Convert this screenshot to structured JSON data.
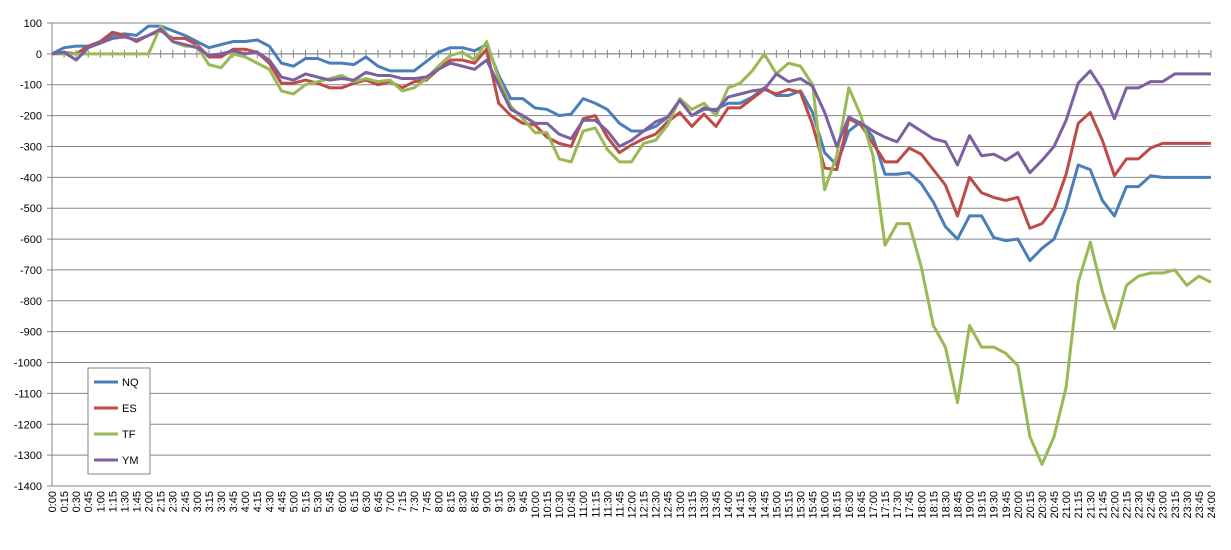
{
  "chart_data": {
    "type": "line",
    "categories": [
      "0:00",
      "0:15",
      "0:30",
      "0:45",
      "1:00",
      "1:15",
      "1:30",
      "1:45",
      "2:00",
      "2:15",
      "2:30",
      "2:45",
      "3:00",
      "3:15",
      "3:30",
      "3:45",
      "4:00",
      "4:15",
      "4:30",
      "4:45",
      "5:00",
      "5:15",
      "5:30",
      "5:45",
      "6:00",
      "6:15",
      "6:30",
      "6:45",
      "7:00",
      "7:15",
      "7:30",
      "7:45",
      "8:00",
      "8:15",
      "8:30",
      "8:45",
      "9:00",
      "9:15",
      "9:30",
      "9:45",
      "10:00",
      "10:15",
      "10:30",
      "10:45",
      "11:00",
      "11:15",
      "11:30",
      "11:45",
      "12:00",
      "12:15",
      "12:30",
      "12:45",
      "13:00",
      "13:15",
      "13:30",
      "13:45",
      "14:00",
      "14:15",
      "14:30",
      "14:45",
      "15:00",
      "15:15",
      "15:30",
      "15:45",
      "16:00",
      "16:15",
      "16:30",
      "16:45",
      "17:00",
      "17:15",
      "17:30",
      "17:45",
      "18:00",
      "18:15",
      "18:30",
      "18:45",
      "19:00",
      "19:15",
      "19:30",
      "19:45",
      "20:00",
      "20:15",
      "20:30",
      "20:45",
      "21:00",
      "21:15",
      "21:30",
      "21:45",
      "22:00",
      "22:15",
      "22:30",
      "22:45",
      "23:00",
      "23:15",
      "23:30",
      "23:45",
      "24:00"
    ],
    "series": [
      {
        "name": "NQ",
        "color": "#4a7ebb",
        "values": [
          0,
          20,
          25,
          25,
          35,
          60,
          65,
          60,
          90,
          90,
          75,
          60,
          40,
          20,
          30,
          40,
          40,
          45,
          25,
          -30,
          -40,
          -15,
          -15,
          -30,
          -30,
          -35,
          -10,
          -40,
          -55,
          -55,
          -55,
          -25,
          5,
          20,
          20,
          10,
          30,
          -70,
          -145,
          -145,
          -175,
          -180,
          -200,
          -195,
          -145,
          -160,
          -180,
          -225,
          -250,
          -250,
          -235,
          -205,
          -150,
          -200,
          -180,
          -180,
          -160,
          -160,
          -140,
          -110,
          -135,
          -135,
          -120,
          -190,
          -320,
          -360,
          -250,
          -220,
          -270,
          -390,
          -390,
          -385,
          -420,
          -480,
          -560,
          -600,
          -525,
          -525,
          -595,
          -605,
          -600,
          -670,
          -630,
          -600,
          -500,
          -360,
          -375,
          -475,
          -525,
          -430,
          -430,
          -395,
          -400,
          -400,
          -400,
          -400,
          -400
        ]
      },
      {
        "name": "ES",
        "color": "#be4b48",
        "values": [
          0,
          5,
          0,
          25,
          40,
          70,
          60,
          40,
          60,
          75,
          50,
          50,
          30,
          -10,
          -10,
          15,
          15,
          5,
          -30,
          -95,
          -95,
          -85,
          -95,
          -110,
          -110,
          -95,
          -85,
          -100,
          -90,
          -110,
          -90,
          -85,
          -50,
          -20,
          -20,
          -30,
          15,
          -160,
          -200,
          -225,
          -230,
          -270,
          -290,
          -300,
          -210,
          -200,
          -270,
          -320,
          -295,
          -275,
          -260,
          -220,
          -190,
          -235,
          -195,
          -235,
          -175,
          -175,
          -145,
          -115,
          -130,
          -115,
          -125,
          -230,
          -370,
          -375,
          -210,
          -230,
          -290,
          -350,
          -350,
          -305,
          -325,
          -375,
          -425,
          -525,
          -400,
          -450,
          -465,
          -475,
          -465,
          -565,
          -550,
          -500,
          -390,
          -225,
          -190,
          -280,
          -395,
          -340,
          -340,
          -305,
          -290,
          -290,
          -290,
          -290,
          -290
        ]
      },
      {
        "name": "TF",
        "color": "#98b954",
        "values": [
          0,
          0,
          0,
          0,
          0,
          0,
          0,
          0,
          0,
          90,
          40,
          25,
          25,
          -35,
          -45,
          0,
          -10,
          -30,
          -50,
          -120,
          -130,
          -100,
          -90,
          -80,
          -70,
          -90,
          -80,
          -90,
          -85,
          -120,
          -110,
          -80,
          -40,
          -5,
          5,
          -20,
          40,
          -80,
          -170,
          -210,
          -255,
          -255,
          -340,
          -350,
          -250,
          -240,
          -310,
          -350,
          -350,
          -290,
          -280,
          -230,
          -145,
          -180,
          -160,
          -200,
          -110,
          -95,
          -55,
          0,
          -65,
          -30,
          -40,
          -100,
          -440,
          -330,
          -110,
          -200,
          -330,
          -620,
          -550,
          -550,
          -690,
          -880,
          -950,
          -1130,
          -880,
          -950,
          -950,
          -970,
          -1010,
          -1240,
          -1330,
          -1240,
          -1080,
          -740,
          -610,
          -770,
          -890,
          -750,
          -720,
          -710,
          -710,
          -700,
          -750,
          -720,
          -740
        ]
      },
      {
        "name": "YM",
        "color": "#7d60a0",
        "values": [
          0,
          5,
          -20,
          20,
          35,
          50,
          55,
          45,
          60,
          80,
          40,
          30,
          20,
          -5,
          0,
          10,
          0,
          5,
          -20,
          -75,
          -85,
          -65,
          -75,
          -85,
          -80,
          -85,
          -60,
          -70,
          -70,
          -80,
          -80,
          -75,
          -50,
          -30,
          -40,
          -50,
          -20,
          -100,
          -180,
          -200,
          -225,
          -225,
          -260,
          -275,
          -215,
          -215,
          -250,
          -300,
          -280,
          -250,
          -220,
          -205,
          -150,
          -200,
          -175,
          -185,
          -140,
          -130,
          -120,
          -115,
          -65,
          -90,
          -80,
          -105,
          -190,
          -300,
          -205,
          -225,
          -250,
          -270,
          -285,
          -225,
          -250,
          -275,
          -285,
          -360,
          -265,
          -330,
          -325,
          -345,
          -320,
          -385,
          -345,
          -300,
          -215,
          -95,
          -55,
          -115,
          -210,
          -110,
          -110,
          -90,
          -90,
          -65,
          -65,
          -65,
          -65
        ]
      }
    ],
    "ylim": [
      -1400,
      100
    ],
    "yticks": [
      -1400,
      -1300,
      -1200,
      -1100,
      -1000,
      -900,
      -800,
      -700,
      -600,
      -500,
      -400,
      -300,
      -200,
      -100,
      0,
      100
    ],
    "grid": true,
    "legend": "bottom-left"
  }
}
